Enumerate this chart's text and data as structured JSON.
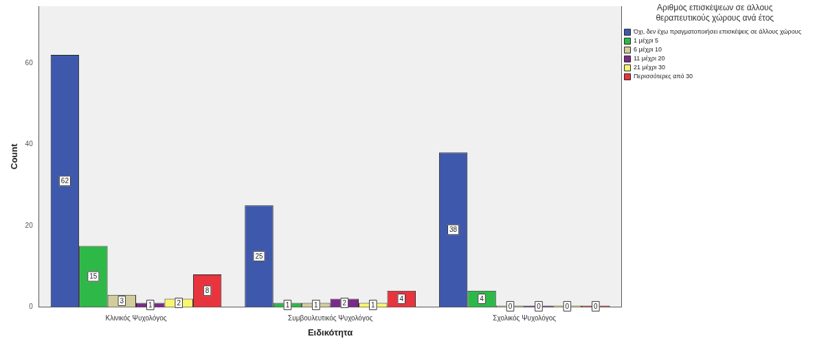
{
  "chart_data": {
    "type": "bar",
    "xlabel": "Ειδικότητα",
    "ylabel": "Count",
    "legend_title": "Αριθμός επισκέψεων σε άλλους θεραπευτικούς χώρους ανά έτος",
    "categories": [
      "Κλινικός Ψυχολόγος",
      "Συμβουλευτικός Ψυχολόγος",
      "Σχολικός Ψυχολόγος"
    ],
    "series": [
      {
        "name": "Όχι, δεν έχω πραγματοποιήσει επισκέψεις σε άλλους χώρους",
        "color": "#3e58ac",
        "values": [
          62,
          25,
          38
        ]
      },
      {
        "name": "1 μέχρι 5",
        "color": "#2eb848",
        "values": [
          15,
          1,
          4
        ]
      },
      {
        "name": "6 μέχρι 10",
        "color": "#d2cc9c",
        "values": [
          3,
          1,
          0
        ]
      },
      {
        "name": "11 μέχρι 20",
        "color": "#7b2a8a",
        "values": [
          1,
          2,
          0
        ]
      },
      {
        "name": "21 μέχρι 30",
        "color": "#faf56e",
        "values": [
          2,
          1,
          0
        ]
      },
      {
        "name": "Περισσότερες από 30",
        "color": "#e8343c",
        "values": [
          8,
          4,
          0
        ]
      }
    ],
    "ylim": [
      0,
      74
    ],
    "yticks": [
      0,
      20,
      40,
      60
    ],
    "grid": false,
    "legend": "top right",
    "data_labels": true
  }
}
